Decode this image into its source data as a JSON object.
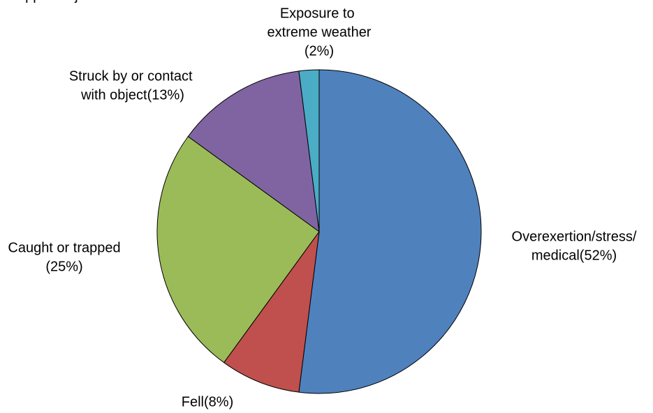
{
  "chart_data": {
    "type": "pie",
    "categories": [
      "Overexertion/stress/medical",
      "Fell",
      "Caught or trapped",
      "Struck by or contact with object",
      "Exposure to extreme weather"
    ],
    "values": [
      52,
      8,
      25,
      13,
      2
    ],
    "value_labels": [
      "(52%)",
      "(8%)",
      "(25%)",
      "(13%)",
      "(2%)"
    ],
    "colors": [
      "#4f81bd",
      "#c0504d",
      "#9bbb59",
      "#8064a2",
      "#4bacc6"
    ]
  }
}
